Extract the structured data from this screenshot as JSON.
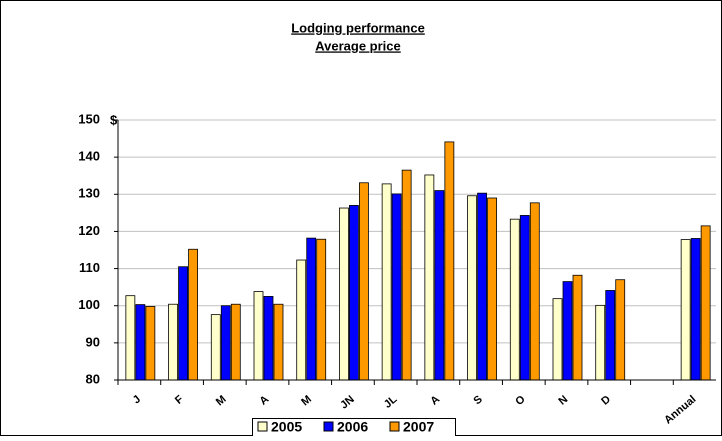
{
  "chart_data": {
    "type": "bar",
    "title": "Lodging performance",
    "subtitle": "Average price",
    "y_unit": "$",
    "categories": [
      "J",
      "F",
      "M",
      "A",
      "M",
      "JN",
      "JL",
      "A",
      "S",
      "O",
      "N",
      "D",
      null,
      "Annual"
    ],
    "series": [
      {
        "name": "2005",
        "color": "#ffffcc",
        "values": [
          102.7,
          100.4,
          97.6,
          103.8,
          112.3,
          126.3,
          132.8,
          135.2,
          129.6,
          123.3,
          101.9,
          100.1,
          null,
          117.8
        ]
      },
      {
        "name": "2006",
        "color": "#0000ff",
        "values": [
          100.3,
          110.5,
          100.0,
          102.5,
          118.2,
          127.0,
          130.1,
          131.0,
          130.3,
          124.3,
          106.5,
          104.1,
          null,
          118.1
        ]
      },
      {
        "name": "2007",
        "color": "#ff9900",
        "values": [
          99.8,
          115.2,
          100.4,
          100.4,
          117.9,
          133.1,
          136.5,
          144.1,
          129.0,
          127.7,
          108.2,
          107.0,
          null,
          121.5
        ]
      }
    ],
    "ylim": [
      80,
      150
    ],
    "yticks": [
      80,
      90,
      100,
      110,
      120,
      130,
      140,
      150
    ],
    "grid": true
  }
}
